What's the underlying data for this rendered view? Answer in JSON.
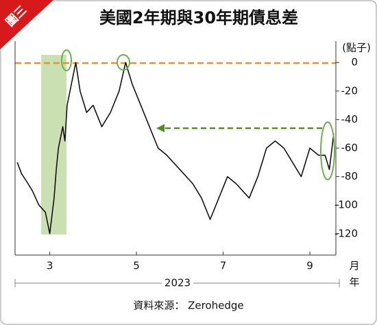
{
  "badge": "圖三",
  "chart_data": {
    "type": "line",
    "title": "美國2年期與30年期債息差",
    "y_label": "(點子)",
    "x_label": "月",
    "x_group_label": "年",
    "year": "2023",
    "source": "資料來源： Zerohedge",
    "x": [
      2.25,
      2.35,
      2.5,
      2.6,
      2.75,
      2.9,
      3.0,
      3.1,
      3.15,
      3.2,
      3.3,
      3.35,
      3.4,
      3.5,
      3.6,
      3.7,
      3.85,
      4.0,
      4.2,
      4.4,
      4.6,
      4.75,
      4.9,
      5.1,
      5.3,
      5.5,
      5.7,
      6.0,
      6.3,
      6.5,
      6.7,
      6.9,
      7.1,
      7.3,
      7.6,
      7.8,
      8.0,
      8.2,
      8.4,
      8.6,
      8.8,
      9.0,
      9.2,
      9.35,
      9.45,
      9.55
    ],
    "series": [
      {
        "name": "2年期與30年期債息差",
        "color": "#111111",
        "values": [
          -70,
          -78,
          -85,
          -90,
          -100,
          -105,
          -120,
          -95,
          -75,
          -60,
          -45,
          -55,
          -30,
          -15,
          0,
          -20,
          -35,
          -30,
          -45,
          -35,
          -20,
          0,
          -15,
          -30,
          -45,
          -60,
          -65,
          -75,
          -85,
          -95,
          -110,
          -95,
          -80,
          -85,
          -95,
          -80,
          -60,
          -55,
          -60,
          -70,
          -80,
          -60,
          -65,
          -65,
          -75,
          -50
        ]
      }
    ],
    "xlim": [
      2.2,
      9.6
    ],
    "xticks": [
      3,
      5,
      7,
      9
    ],
    "ylim": [
      -135,
      15
    ],
    "yticks": [
      0,
      -20,
      -40,
      -60,
      -80,
      -100,
      -120
    ]
  }
}
